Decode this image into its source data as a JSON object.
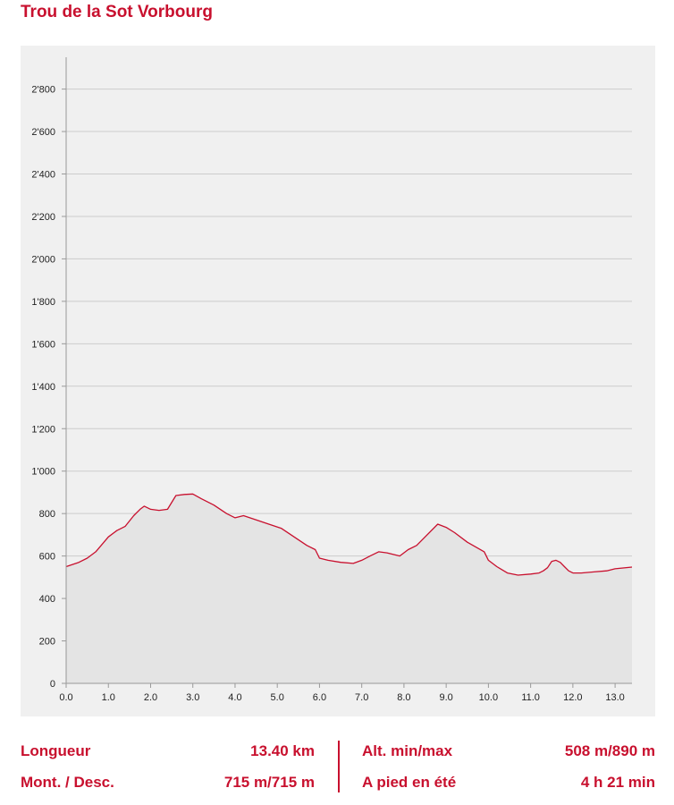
{
  "title": "Trou de la Sot Vorbourg",
  "colors": {
    "accent": "#c8102e",
    "fill": "#e4e4e4",
    "grid": "#cccccc",
    "panel": "#f0f0f0"
  },
  "chart_data": {
    "type": "area",
    "xlim": [
      0,
      13.4
    ],
    "ylim": [
      0,
      2950
    ],
    "x_ticks": [
      0,
      1,
      2,
      3,
      4,
      5,
      6,
      7,
      8,
      9,
      10,
      11,
      12,
      13
    ],
    "x_tick_labels": [
      "0.0",
      "1.0",
      "2.0",
      "3.0",
      "4.0",
      "5.0",
      "6.0",
      "7.0",
      "8.0",
      "9.0",
      "10.0",
      "11.0",
      "12.0",
      "13.0"
    ],
    "y_ticks": [
      0,
      200,
      400,
      600,
      800,
      1000,
      1200,
      1400,
      1600,
      1800,
      2000,
      2200,
      2400,
      2600,
      2800
    ],
    "y_tick_labels": [
      "0",
      "200",
      "400",
      "600",
      "800",
      "1'000",
      "1'200",
      "1'400",
      "1'600",
      "1'800",
      "2'000",
      "2'200",
      "2'400",
      "2'600",
      "2'800"
    ],
    "grid": true,
    "series": [
      {
        "x": [
          0,
          0.3,
          0.5,
          0.7,
          1.0,
          1.2,
          1.4,
          1.6,
          1.75,
          1.85,
          2.0,
          2.2,
          2.4,
          2.6,
          2.8,
          3.0,
          3.2,
          3.5,
          3.8,
          4.0,
          4.2,
          4.5,
          4.8,
          5.1,
          5.4,
          5.7,
          5.9,
          6.0,
          6.2,
          6.5,
          6.8,
          7.0,
          7.2,
          7.4,
          7.6,
          7.9,
          8.1,
          8.3,
          8.5,
          8.8,
          9.0,
          9.2,
          9.5,
          9.9,
          10.0,
          10.2,
          10.45,
          10.7,
          11.0,
          11.2,
          11.3,
          11.4,
          11.5,
          11.6,
          11.7,
          11.8,
          11.9,
          12.0,
          12.2,
          12.5,
          12.8,
          13.0,
          13.4
        ],
        "y": [
          550,
          570,
          590,
          620,
          690,
          720,
          740,
          790,
          820,
          835,
          820,
          815,
          820,
          885,
          890,
          892,
          870,
          840,
          800,
          780,
          790,
          770,
          750,
          730,
          690,
          650,
          630,
          590,
          580,
          570,
          565,
          580,
          600,
          620,
          615,
          600,
          630,
          650,
          690,
          750,
          735,
          710,
          665,
          620,
          580,
          550,
          520,
          510,
          515,
          520,
          530,
          545,
          575,
          580,
          570,
          550,
          530,
          520,
          520,
          525,
          530,
          540,
          548
        ]
      }
    ]
  },
  "stats": {
    "length_label": "Longueur",
    "length_value": "13.40 km",
    "ascent_label": "Mont. / Desc.",
    "ascent_value": "715 m/715 m",
    "alt_label": "Alt. min/max",
    "alt_value": "508 m/890 m",
    "time_label": "A pied en été",
    "time_value": "4 h 21 min"
  }
}
